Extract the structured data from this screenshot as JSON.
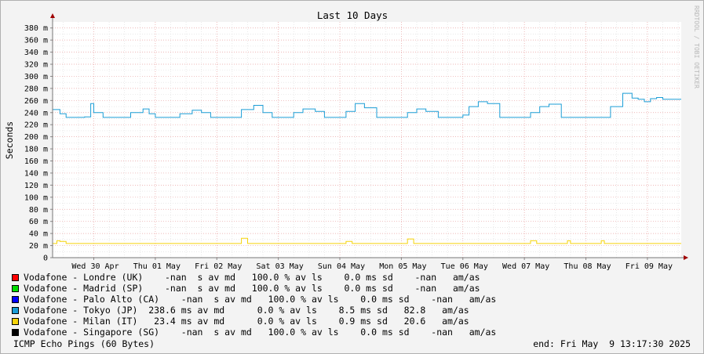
{
  "chart_data": {
    "type": "line",
    "title": "Last 10 Days",
    "ylabel": "Seconds",
    "ylim": [
      0,
      390
    ],
    "y_ticks": [
      "0",
      "20 m",
      "40 m",
      "60 m",
      "80 m",
      "100 m",
      "120 m",
      "140 m",
      "160 m",
      "180 m",
      "200 m",
      "220 m",
      "240 m",
      "260 m",
      "280 m",
      "300 m",
      "320 m",
      "340 m",
      "360 m",
      "380 m"
    ],
    "x_ticks": [
      "Wed 30 Apr",
      "Thu 01 May",
      "Fri 02 May",
      "Sat 03 May",
      "Sun 04 May",
      "Mon 05 May",
      "Tue 06 May",
      "Wed 07 May",
      "Thu 08 May",
      "Fri 09 May"
    ],
    "x_unit": "days",
    "x_range": [
      -0.67,
      9.55
    ],
    "series": [
      {
        "name": "Vodafone - Tokyo (JP)",
        "color": "#1b9dd6",
        "y_unit": "ms",
        "x": [
          -0.67,
          -0.55,
          -0.45,
          -0.3,
          -0.15,
          -0.05,
          0.0,
          0.15,
          0.3,
          0.45,
          0.6,
          0.8,
          0.9,
          1.0,
          1.1,
          1.25,
          1.4,
          1.6,
          1.75,
          1.9,
          2.0,
          2.1,
          2.25,
          2.4,
          2.6,
          2.75,
          2.9,
          3.0,
          3.1,
          3.25,
          3.4,
          3.6,
          3.75,
          3.9,
          4.0,
          4.1,
          4.25,
          4.4,
          4.6,
          4.75,
          4.9,
          5.0,
          5.1,
          5.25,
          5.4,
          5.6,
          5.75,
          5.9,
          6.0,
          6.1,
          6.25,
          6.4,
          6.6,
          6.75,
          6.9,
          7.0,
          7.1,
          7.25,
          7.4,
          7.6,
          7.75,
          7.9,
          8.0,
          8.1,
          8.25,
          8.4,
          8.6,
          8.75,
          8.85,
          8.95,
          9.05,
          9.15,
          9.25,
          9.35,
          9.45,
          9.55
        ],
        "y": [
          245,
          238,
          232,
          232,
          233,
          255,
          240,
          232,
          232,
          232,
          240,
          246,
          238,
          232,
          232,
          232,
          238,
          244,
          240,
          232,
          232,
          232,
          232,
          245,
          252,
          240,
          232,
          232,
          232,
          240,
          246,
          242,
          232,
          232,
          232,
          242,
          255,
          248,
          232,
          232,
          232,
          232,
          240,
          246,
          242,
          232,
          232,
          232,
          236,
          250,
          258,
          255,
          232,
          232,
          232,
          232,
          240,
          250,
          254,
          232,
          232,
          232,
          232,
          232,
          232,
          250,
          272,
          264,
          262,
          258,
          263,
          265,
          262,
          262,
          262,
          262
        ]
      },
      {
        "name": "Vodafone - Milan (IT)",
        "color": "#f6d40a",
        "y_unit": "ms",
        "x": [
          -0.67,
          -0.6,
          -0.55,
          -0.45,
          0.5,
          1.5,
          2.3,
          2.4,
          2.5,
          3.0,
          4.0,
          4.1,
          4.2,
          5.0,
          5.1,
          5.2,
          6.0,
          7.0,
          7.1,
          7.2,
          7.65,
          7.7,
          7.75,
          8.2,
          8.25,
          8.3,
          9.0,
          9.55
        ],
        "y": [
          23.4,
          28,
          27,
          23.4,
          23.4,
          23.4,
          23.4,
          32,
          23.4,
          23.4,
          23.4,
          27,
          23.4,
          23.4,
          31,
          23.4,
          23.4,
          23.4,
          28,
          23.4,
          23.4,
          28,
          23.4,
          23.4,
          28,
          23.4,
          23.4,
          23.4
        ]
      }
    ]
  },
  "legend": [
    {
      "color": "#ff0000",
      "text": "Vodafone - Londre (UK)    -nan  s av md   100.0 % av ls    0.0 ms sd    -nan   am/as"
    },
    {
      "color": "#00dd00",
      "text": "Vodafone - Madrid (SP)    -nan  s av md   100.0 % av ls    0.0 ms sd    -nan   am/as"
    },
    {
      "color": "#0000ff",
      "text": "Vodafone - Palo Alto (CA)    -nan  s av md   100.0 % av ls    0.0 ms sd    -nan   am/as"
    },
    {
      "color": "#1b9dd6",
      "text": "Vodafone - Tokyo (JP)  238.6 ms av md      0.0 % av ls    8.5 ms sd   82.8   am/as"
    },
    {
      "color": "#f6d40a",
      "text": "Vodafone - Milan (IT)   23.4 ms av md      0.0 % av ls    0.9 ms sd   20.6   am/as"
    },
    {
      "color": "#000000",
      "text": "Vodafone - Singapore (SG)    -nan  s av md   100.0 % av ls    0.0 ms sd    -nan   am/as"
    }
  ],
  "footer_left": "ICMP Echo Pings (60 Bytes)",
  "footer_right": "end: Fri May  9 13:17:30 2025",
  "watermark": "RRDTOOL / TOBI OETIKER"
}
